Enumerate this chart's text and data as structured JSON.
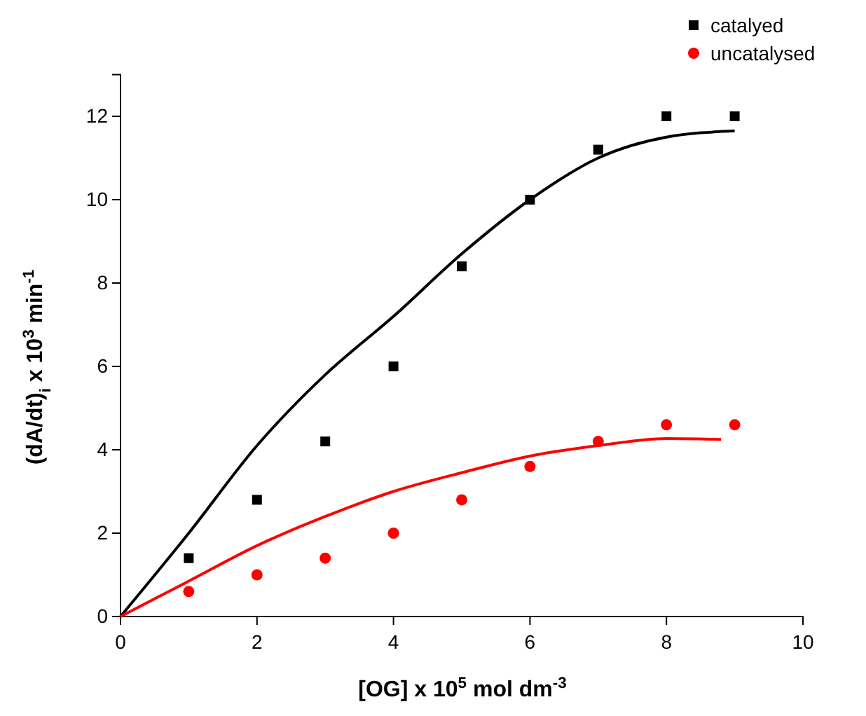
{
  "chart_data": {
    "type": "scatter",
    "xlabel": "[OG] x 10$^{5}$ mol dm$^{-3}$",
    "ylabel": "(dA/dt)$_{i}$ x 10$^{3}$ min$^{-1}$",
    "xlim": [
      0,
      10
    ],
    "ylim": [
      0,
      13
    ],
    "xticks": [
      0,
      2,
      4,
      6,
      8,
      10
    ],
    "yticks": [
      0,
      2,
      4,
      6,
      8,
      10,
      12
    ],
    "grid": false,
    "legend": "top right",
    "series": [
      {
        "name": "catalyed",
        "marker": "square",
        "color": "#000000",
        "x": [
          1,
          2,
          3,
          4,
          5,
          6,
          7,
          8,
          9
        ],
        "values": [
          1.4,
          2.8,
          4.2,
          6.0,
          8.4,
          10.0,
          11.2,
          12.0,
          12.0
        ]
      },
      {
        "name": "uncatalysed",
        "marker": "circle",
        "color": "#ff0000",
        "x": [
          1,
          2,
          3,
          4,
          5,
          6,
          7,
          8,
          9
        ],
        "values": [
          0.6,
          1.0,
          1.4,
          2.0,
          2.8,
          3.6,
          4.2,
          4.6,
          4.6
        ]
      },
      {
        "type": "line",
        "marker": "none",
        "color": "#000000",
        "x": [
          0,
          1,
          2,
          3,
          4,
          5,
          6,
          7,
          8,
          9
        ],
        "values": [
          0,
          2.0,
          4.1,
          5.8,
          7.2,
          8.7,
          10.0,
          11.0,
          11.5,
          11.65
        ]
      },
      {
        "type": "line",
        "marker": "none",
        "color": "#ff0000",
        "x": [
          0,
          1,
          2,
          3,
          4,
          5,
          6,
          7,
          8,
          8.8
        ],
        "values": [
          0,
          0.85,
          1.7,
          2.4,
          3.0,
          3.45,
          3.85,
          4.1,
          4.27,
          4.25
        ]
      }
    ]
  }
}
